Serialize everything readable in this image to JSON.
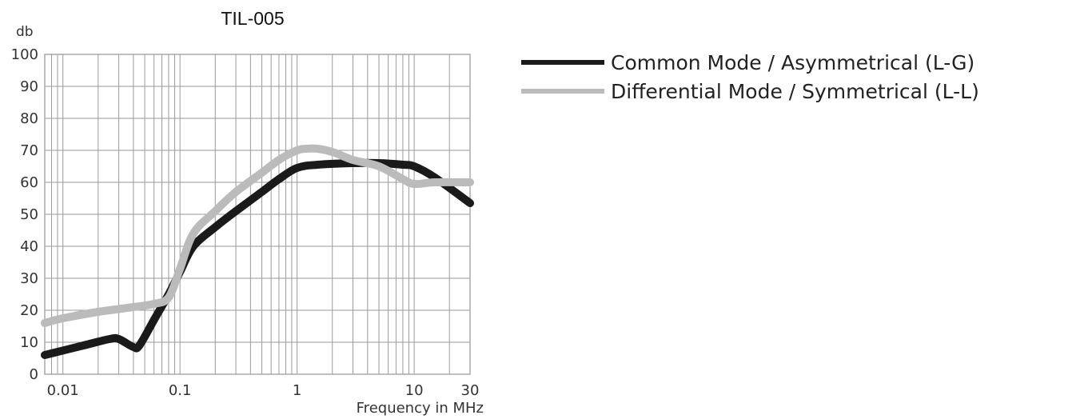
{
  "chart_data": {
    "type": "line",
    "title": "TIL-005",
    "ylabel": "db",
    "xlabel": "Frequency in MHz",
    "xscale": "log",
    "xlim": [
      0.007,
      30
    ],
    "ylim": [
      0,
      100
    ],
    "yticks": [
      0,
      10,
      20,
      30,
      40,
      50,
      60,
      70,
      80,
      90,
      100
    ],
    "xticks": [
      {
        "value": 0.01,
        "label": "0.01"
      },
      {
        "value": 0.1,
        "label": "0.1"
      },
      {
        "value": 1,
        "label": "1"
      },
      {
        "value": 10,
        "label": "10"
      },
      {
        "value": 30,
        "label": "30"
      }
    ],
    "grid": true,
    "legend_position": "right",
    "series": [
      {
        "name": "Common Mode / Asymmetrical (L-G)",
        "color": "#1a1a1a",
        "x": [
          0.007,
          0.015,
          0.025,
          0.03,
          0.04,
          0.045,
          0.06,
          0.08,
          0.1,
          0.13,
          0.2,
          0.3,
          0.5,
          0.7,
          1,
          1.5,
          3,
          5,
          8,
          10,
          15,
          30
        ],
        "y": [
          6,
          9,
          11,
          11,
          8.5,
          9,
          17,
          25,
          32,
          40,
          46,
          51,
          57,
          61,
          64.5,
          65.5,
          66,
          66,
          65.5,
          65,
          61.5,
          53.5
        ]
      },
      {
        "name": "Differential Mode / Symmetrical (L-L)",
        "color": "#bbbbbb",
        "x": [
          0.007,
          0.01,
          0.02,
          0.04,
          0.06,
          0.08,
          0.1,
          0.13,
          0.2,
          0.3,
          0.5,
          0.7,
          1,
          1.2,
          1.5,
          2,
          3,
          5,
          8,
          10,
          15,
          30
        ],
        "y": [
          16,
          17.5,
          19.5,
          21,
          22,
          24,
          33,
          44,
          51,
          57,
          63,
          67,
          70,
          70.5,
          70.5,
          69.5,
          67,
          65,
          61,
          59.5,
          60,
          60
        ]
      }
    ]
  }
}
